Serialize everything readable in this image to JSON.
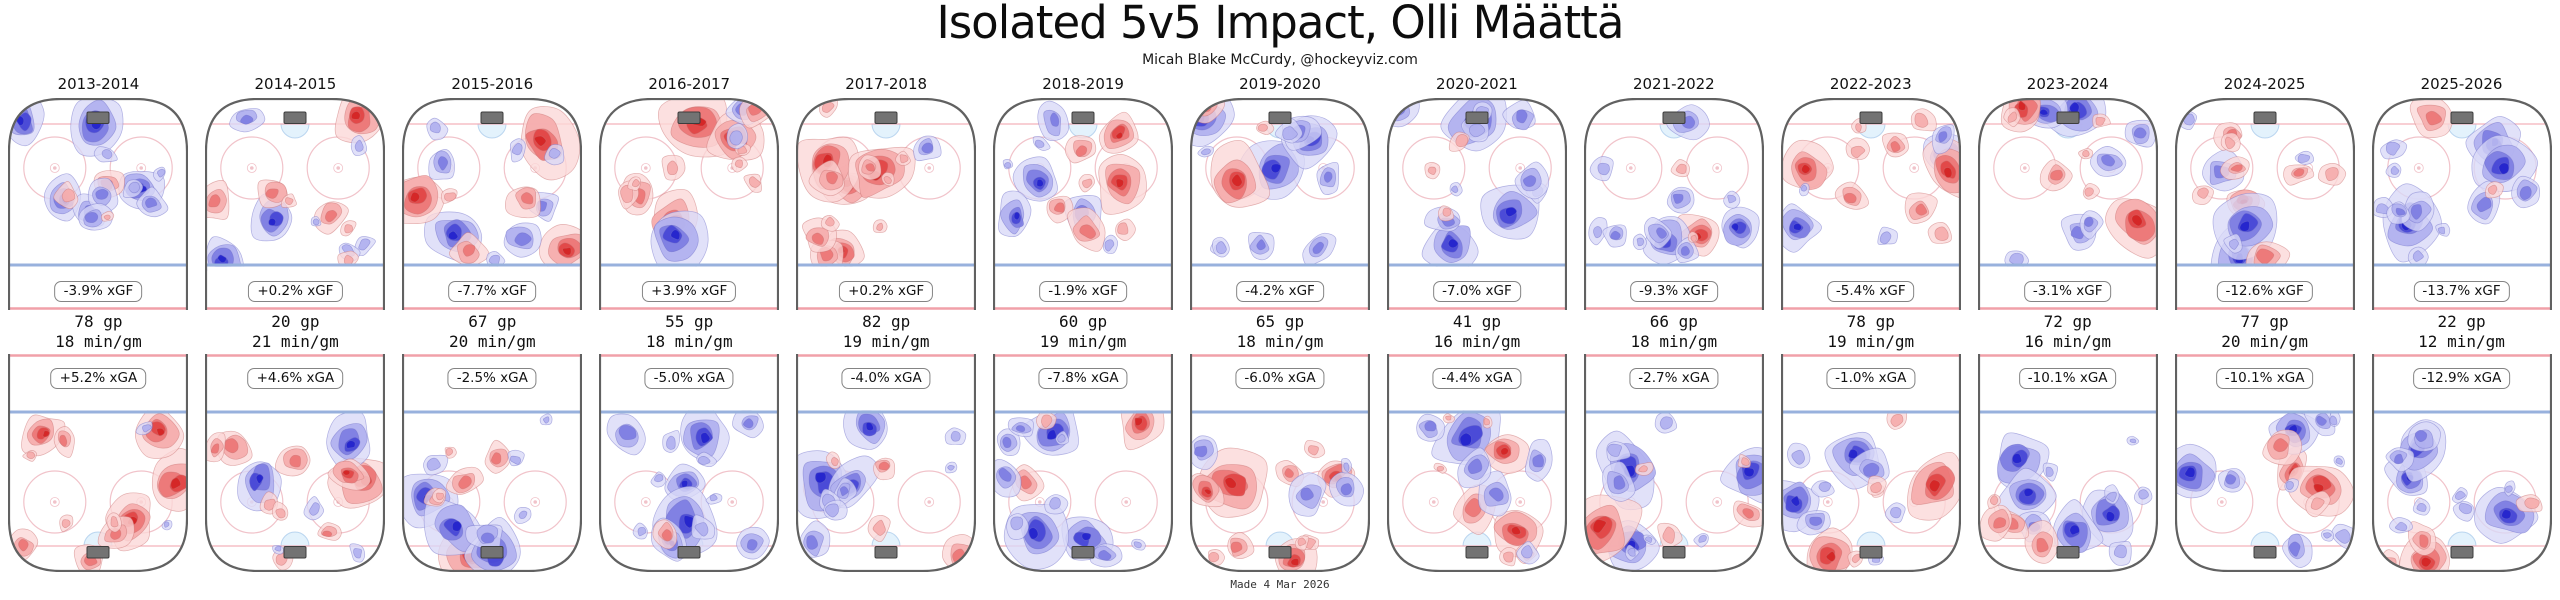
{
  "title": "Isolated 5v5 Impact, Olli Määttä",
  "subtitle": "Micah Blake McCurdy, @hockeyviz.com",
  "footer": "Made 4 Mar 2026",
  "colors": {
    "boards": "#616161",
    "blue_line": "#98b1dd",
    "red_line": "rgba(240,150,160,0.9)",
    "goal_line": "rgba(242,166,175,0.85)",
    "faceoff_circle": "rgba(228,135,150,0.5)",
    "crease_fill": "#e3f2fc",
    "crease_stroke": "rgba(150,190,230,0.6)",
    "goal_fill": "#737373",
    "goal_stroke": "#3d3d3d",
    "red_levels": [
      "#fbd7d7",
      "#f5abab",
      "#ec7575",
      "#e14444",
      "#d42525"
    ],
    "blue_levels": [
      "#d9d9f7",
      "#b0b0ef",
      "#7d7de2",
      "#4646d6",
      "#2323cc"
    ],
    "red_contour": "#c96f6f",
    "blue_contour": "#6f6fc9"
  },
  "chart_data": {
    "type": "heatmap",
    "title": "Isolated 5v5 Impact, Olli Määttä",
    "subtitle": "Micah Blake McCurdy, @hockeyviz.com",
    "layout": "13 season columns; each column has an offensive-zone shot heatmap (xGF) above and a defensive-zone shot heatmap (xGA) below, red = more expected goals than league average, blue = fewer",
    "made_date": "Made 4 Mar 2026",
    "seasons": [
      {
        "label": "2013-2014",
        "xgf": "-3.9% xGF",
        "gp": "78 gp",
        "toi": "18 min/gm",
        "xga": "+5.2% xGA",
        "offense_map": "mixed, blue tilt with red patch right slot",
        "defense_map": "mostly red",
        "offense_red_share": 0.38,
        "defense_red_share": 0.72
      },
      {
        "label": "2014-2015",
        "xgf": "+0.2% xGF",
        "gp": "20 gp",
        "toi": "21 min/gm",
        "xga": "+4.6% xGA",
        "offense_map": "mixed with strong red spots high and low",
        "defense_map": "mostly red, deep red spots",
        "offense_red_share": 0.52,
        "defense_red_share": 0.68
      },
      {
        "label": "2015-2016",
        "xgf": "-7.7% xGF",
        "gp": "67 gp",
        "toi": "20 min/gm",
        "xga": "-2.5% xGA",
        "offense_map": "red near net, blue at points",
        "defense_map": "mixed, blue left side",
        "offense_red_share": 0.5,
        "defense_red_share": 0.45
      },
      {
        "label": "2016-2017",
        "xgf": "+3.9% xGF",
        "gp": "55 gp",
        "toi": "18 min/gm",
        "xga": "-5.0% xGA",
        "offense_map": "mostly red",
        "defense_map": "mostly blue, deep blue slot",
        "offense_red_share": 0.68,
        "defense_red_share": 0.32
      },
      {
        "label": "2017-2018",
        "xgf": "+0.2% xGF",
        "gp": "82 gp",
        "toi": "19 min/gm",
        "xga": "-4.0% xGA",
        "offense_map": "mostly red",
        "defense_map": "blue slot with red edges",
        "offense_red_share": 0.66,
        "defense_red_share": 0.42
      },
      {
        "label": "2018-2019",
        "xgf": "-1.9% xGF",
        "gp": "60 gp",
        "toi": "19 min/gm",
        "xga": "-7.8% xGA",
        "offense_map": "sparse mixed",
        "defense_map": "mostly blue, deep blue low slot",
        "offense_red_share": 0.48,
        "defense_red_share": 0.33
      },
      {
        "label": "2019-2020",
        "xgf": "-4.2% xGF",
        "gp": "65 gp",
        "toi": "18 min/gm",
        "xga": "-6.0% xGA",
        "offense_map": "blue slot, red left boards",
        "defense_map": "mostly red up high",
        "offense_red_share": 0.42,
        "defense_red_share": 0.68
      },
      {
        "label": "2020-2021",
        "xgf": "-7.0% xGF",
        "gp": "41 gp",
        "toi": "16 min/gm",
        "xga": "-4.4% xGA",
        "offense_map": "mostly blue",
        "defense_map": "mixed light",
        "offense_red_share": 0.3,
        "defense_red_share": 0.5
      },
      {
        "label": "2021-2022",
        "xgf": "-9.3% xGF",
        "gp": "66 gp",
        "toi": "18 min/gm",
        "xga": "-2.7% xGA",
        "offense_map": "mostly blue, deep blue high slot",
        "defense_map": "mixed, light red",
        "offense_red_share": 0.24,
        "defense_red_share": 0.55
      },
      {
        "label": "2022-2023",
        "xgf": "-5.4% xGF",
        "gp": "78 gp",
        "toi": "19 min/gm",
        "xga": "-1.0% xGA",
        "offense_map": "mixed",
        "defense_map": "mixed",
        "offense_red_share": 0.48,
        "defense_red_share": 0.5
      },
      {
        "label": "2023-2024",
        "xgf": "-3.1% xGF",
        "gp": "72 gp",
        "toi": "16 min/gm",
        "xga": "-10.1% xGA",
        "offense_map": "deep blue left and slot, red right",
        "defense_map": "deep blue slot, red high",
        "offense_red_share": 0.34,
        "defense_red_share": 0.35
      },
      {
        "label": "2024-2025",
        "xgf": "-12.6% xGF",
        "gp": "77 gp",
        "toi": "20 min/gm",
        "xga": "-10.1% xGA",
        "offense_map": "mostly blue with red patches",
        "defense_map": "deep blue slot and low",
        "offense_red_share": 0.36,
        "defense_red_share": 0.28
      },
      {
        "label": "2025-2026",
        "xgf": "-13.7% xGF",
        "gp": "22 gp",
        "toi": "12 min/gm",
        "xga": "-12.9% xGA",
        "offense_map": "mostly blue, deep blue slot",
        "defense_map": "mostly blue, deep blue low right",
        "offense_red_share": 0.16,
        "defense_red_share": 0.24
      }
    ]
  }
}
